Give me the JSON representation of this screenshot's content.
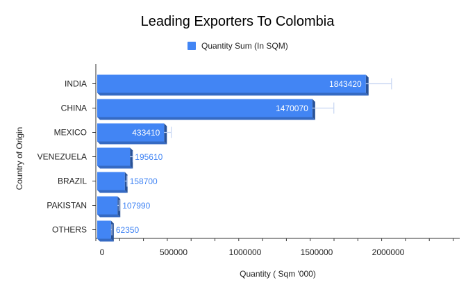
{
  "chart_data": {
    "type": "bar",
    "orientation": "horizontal",
    "style": "3d",
    "title": "Leading Exporters To Colombia",
    "xlabel": "Quantity ( Sqm '000)",
    "ylabel": "Country of Origin",
    "legend": {
      "position": "top",
      "entries": [
        "Quantity Sum (In SQM)"
      ]
    },
    "categories": [
      "INDIA",
      "CHINA",
      "MEXICO",
      "VENEZUELA",
      "BRAZIL",
      "PAKISTAN",
      "OTHERS"
    ],
    "series": [
      {
        "name": "Quantity Sum (In SQM)",
        "color": "#4285f4",
        "values": [
          1843420,
          1470070,
          433410,
          195610,
          158700,
          107990,
          62350
        ],
        "error_plus": [
          180000,
          150000,
          50000,
          20000,
          16000,
          11000,
          6000
        ]
      }
    ],
    "xticks": [
      "0",
      "500000",
      "1000000",
      "1500000",
      "2000000"
    ],
    "xlim": [
      0,
      2500000
    ],
    "grid": false
  }
}
